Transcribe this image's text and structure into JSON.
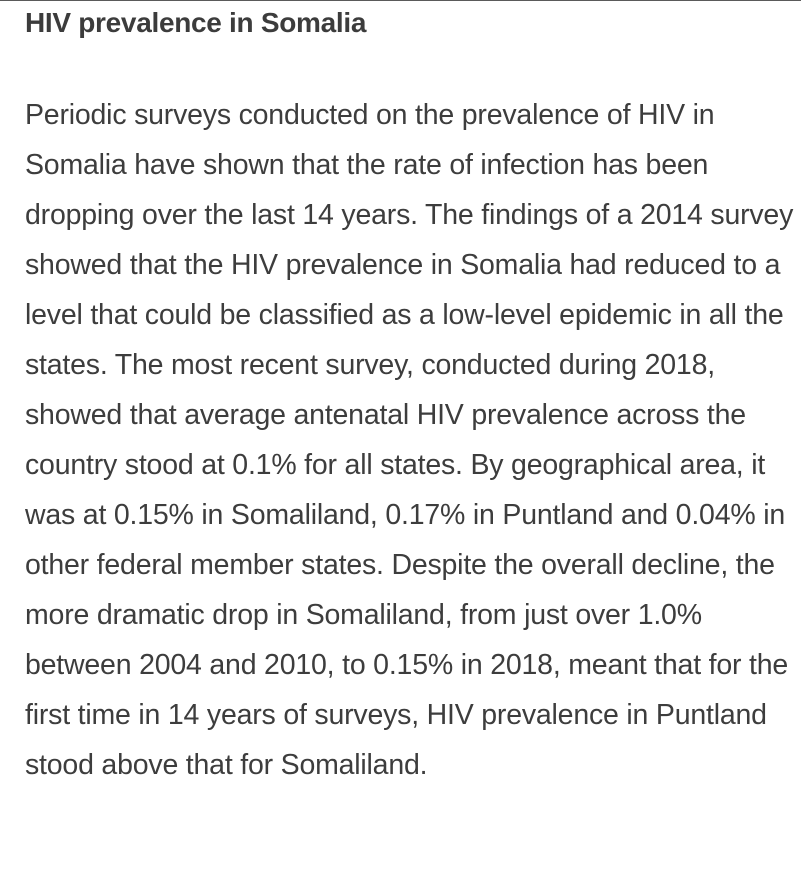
{
  "article": {
    "title": "HIV prevalence in Somalia",
    "paragraph": "Periodic surveys conducted on the prevalence of HIV in Somalia have shown that the rate of infection has been dropping over the last 14 years. The findings of a 2014 survey showed that the HIV prevalence in Somalia had reduced to a level that could be classified as a low-level epidemic in all the states. The most recent survey, conducted during 2018, showed that average antenatal HIV prevalence across the country stood at 0.1% for all states. By geographical area, it was at 0.15% in Somaliland, 0.17% in Puntland and 0.04% in other federal member states. Despite the overall decline, the more dramatic drop in Somaliland, from just over 1.0% between 2004 and 2010, to 0.15% in 2018, meant that for the first time in 14 years of surveys, HIV prevalence in Puntland stood above that for Somaliland."
  }
}
